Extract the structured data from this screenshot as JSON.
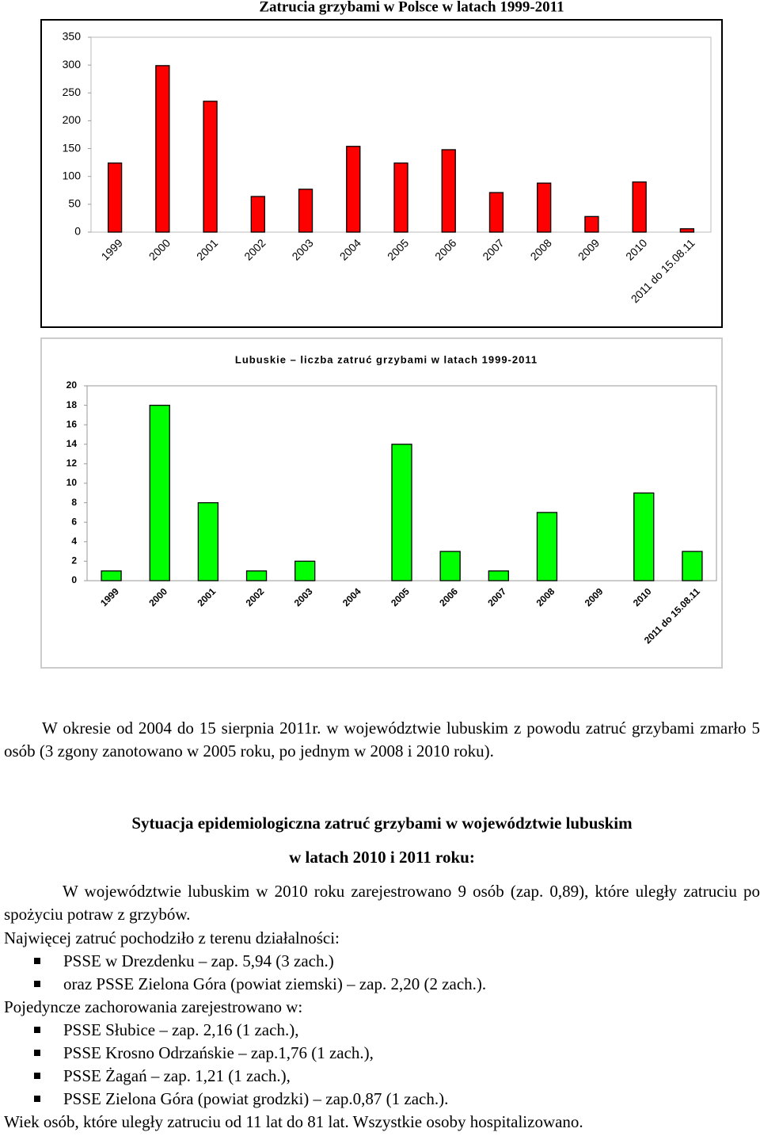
{
  "chart_data": [
    {
      "type": "bar",
      "title": "Zatrucia grzybami w Polsce w latach 1999-2011",
      "categories": [
        "1999",
        "2000",
        "2001",
        "2002",
        "2003",
        "2004",
        "2005",
        "2006",
        "2007",
        "2008",
        "2009",
        "2010",
        "2011 do 15.08.11"
      ],
      "values": [
        124,
        299,
        235,
        64,
        77,
        154,
        124,
        148,
        71,
        88,
        28,
        90,
        6
      ],
      "color": "#ff0000",
      "ylim": [
        0,
        350
      ],
      "yticks": [
        0,
        50,
        100,
        150,
        200,
        250,
        300,
        350
      ],
      "grid": false
    },
    {
      "type": "bar",
      "title": "Lubuskie – liczba zatruć grzybami w latach 1999-2011",
      "categories": [
        "1999",
        "2000",
        "2001",
        "2002",
        "2003",
        "2004",
        "2005",
        "2006",
        "2007",
        "2008",
        "2009",
        "2010",
        "2011 do 15.08.11"
      ],
      "values": [
        1,
        18,
        8,
        1,
        2,
        0,
        14,
        3,
        1,
        7,
        0,
        9,
        3
      ],
      "color": "#00ff00",
      "ylim": [
        0,
        20
      ],
      "yticks": [
        0,
        2,
        4,
        6,
        8,
        10,
        12,
        14,
        16,
        18,
        20
      ],
      "grid": false
    }
  ],
  "document": {
    "paragraph1": "W okresie od 2004 do 15 sierpnia 2011r. w województwie lubuskim z powodu zatruć grzybami zmarło 5 osób (3 zgony zanotowano w 2005 roku, po jednym w 2008 i 2010 roku).",
    "heading1": "Sytuacja epidemiologiczna zatruć grzybami w województwie lubuskim",
    "heading2": "w latach 2010 i 2011 roku:",
    "paragraph2": "W województwie lubuskim w 2010 roku zarejestrowano 9 osób (zap. 0,89), które uległy zatruciu po spożyciu potraw z grzybów.",
    "paragraph3": "Najwięcej zatruć pochodziło z terenu działalności:",
    "list1": [
      "PSSE w Drezdenku – zap. 5,94 (3 zach.)",
      "oraz PSSE Zielona Góra (powiat ziemski) – zap. 2,20 (2 zach.)."
    ],
    "paragraph4": "Pojedyncze zachorowania zarejestrowano w:",
    "list2": [
      "PSSE Słubice – zap. 2,16 (1 zach.),",
      "PSSE Krosno Odrzańskie – zap.1,76 (1 zach.),",
      "PSSE Żagań – zap. 1,21 (1 zach.),",
      "PSSE Zielona Góra (powiat grodzki) – zap.0,87 (1 zach.)."
    ],
    "paragraph5": "Wiek osób, które uległy zatruciu od 11 lat do 81 lat. Wszystkie osoby hospitalizowano."
  }
}
